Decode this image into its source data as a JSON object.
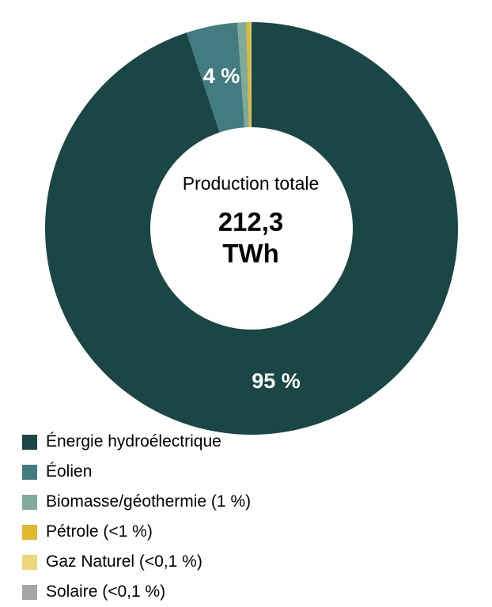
{
  "chart_data": {
    "type": "pie",
    "donut": true,
    "center_label": "Production totale",
    "center_value_line1": "212,3",
    "center_value_line2": "TWh",
    "slices": [
      {
        "name": "Énergie hydroélectrique",
        "value": 95.0,
        "color": "#1b4646",
        "label": "95 %"
      },
      {
        "name": "Éolien",
        "value": 4.0,
        "color": "#427b80",
        "label": "4 %"
      },
      {
        "name": "Biomasse/géothermie (1 %)",
        "value": 0.7,
        "color": "#7fa99b",
        "label": ""
      },
      {
        "name": "Pétrole (<1 %)",
        "value": 0.3,
        "color": "#e0b92d",
        "label": ""
      },
      {
        "name": "Gaz Naturel (<0,1 %)",
        "value": 0.05,
        "color": "#ecd77a",
        "label": ""
      },
      {
        "name": "Solaire (<0,1 %)",
        "value": 0.05,
        "color": "#a6a6a6",
        "label": ""
      }
    ]
  }
}
